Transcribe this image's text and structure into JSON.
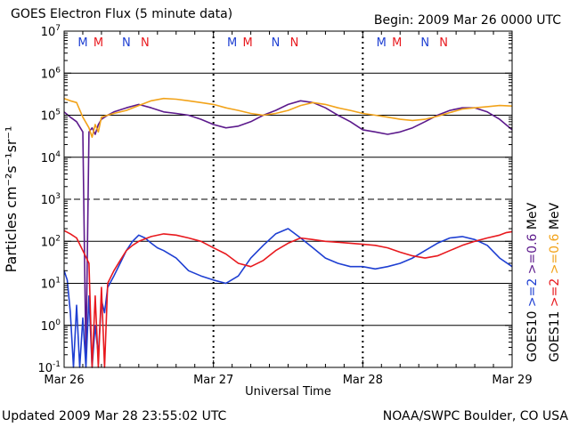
{
  "header": {
    "title": "GOES Electron Flux (5 minute data)",
    "begin": "Begin: 2009 Mar 26 0000 UTC"
  },
  "footer": {
    "updated": "Updated 2009 Mar 28 23:55:02 UTC",
    "credit": "NOAA/SWPC Boulder, CO USA"
  },
  "chart_data": {
    "type": "line",
    "title": "GOES Electron Flux (5 minute data)",
    "xlabel": "Universal Time",
    "ylabel": "Particles cm⁻²s⁻¹sr⁻¹",
    "yscale": "log",
    "ylim": [
      0.1,
      10000000
    ],
    "xlim": [
      0,
      72
    ],
    "x_unit": "hours since 2009 Mar 26 0000 UTC",
    "x_ticks": [
      {
        "x": 0,
        "label": "Mar 26"
      },
      {
        "x": 24,
        "label": "Mar 27"
      },
      {
        "x": 48,
        "label": "Mar 28"
      },
      {
        "x": 72,
        "label": "Mar 29"
      }
    ],
    "y_ticks": [
      {
        "exp": -1,
        "label": "10",
        "sup": "-1"
      },
      {
        "exp": 0,
        "label": "10",
        "sup": "0"
      },
      {
        "exp": 1,
        "label": "10",
        "sup": "1"
      },
      {
        "exp": 2,
        "label": "10",
        "sup": "2"
      },
      {
        "exp": 3,
        "label": "10",
        "sup": "3"
      },
      {
        "exp": 4,
        "label": "10",
        "sup": "4"
      },
      {
        "exp": 5,
        "label": "10",
        "sup": "5"
      },
      {
        "exp": 6,
        "label": "10",
        "sup": "6"
      },
      {
        "exp": 7,
        "label": "10",
        "sup": "7"
      }
    ],
    "solid_gridlines_exp": [
      0,
      1,
      2,
      4,
      5,
      6
    ],
    "dashed_gridlines_exp": [
      3
    ],
    "day_dividers_x": [
      24,
      48
    ],
    "mn_markers": [
      {
        "x": 3,
        "label": "M",
        "color": "#1e3fd2"
      },
      {
        "x": 5.5,
        "label": "M",
        "color": "#e8191e"
      },
      {
        "x": 10,
        "label": "N",
        "color": "#1e3fd2"
      },
      {
        "x": 13,
        "label": "N",
        "color": "#e8191e"
      },
      {
        "x": 27,
        "label": "M",
        "color": "#1e3fd2"
      },
      {
        "x": 29.5,
        "label": "M",
        "color": "#e8191e"
      },
      {
        "x": 34,
        "label": "N",
        "color": "#1e3fd2"
      },
      {
        "x": 37,
        "label": "N",
        "color": "#e8191e"
      },
      {
        "x": 51,
        "label": "M",
        "color": "#1e3fd2"
      },
      {
        "x": 53.5,
        "label": "M",
        "color": "#e8191e"
      },
      {
        "x": 58,
        "label": "N",
        "color": "#1e3fd2"
      },
      {
        "x": 61,
        "label": "N",
        "color": "#e8191e"
      }
    ],
    "legend": [
      {
        "text": "GOES10",
        "color": "#000000"
      },
      {
        "text": ">=2",
        "color": "#1e3fd2"
      },
      {
        "text": ">=0.6",
        "color": "#5c1a8c"
      },
      {
        "text": "MeV",
        "color": "#000000"
      },
      {
        "text": "GOES11",
        "color": "#000000"
      },
      {
        "text": ">=2",
        "color": "#e8191e"
      },
      {
        "text": ">=0.6",
        "color": "#f2a31a"
      },
      {
        "text": "MeV",
        "color": "#000000"
      }
    ],
    "series": [
      {
        "name": "GOES10 >=0.6 MeV",
        "color": "#5c1a8c",
        "x": [
          0,
          1,
          2,
          3,
          3.5,
          4,
          4.5,
          5,
          5.5,
          6,
          7,
          8,
          10,
          12,
          14,
          16,
          18,
          20,
          22,
          24,
          26,
          28,
          30,
          32,
          34,
          36,
          38,
          40,
          42,
          44,
          46,
          48,
          50,
          52,
          54,
          56,
          58,
          60,
          62,
          64,
          66,
          68,
          70,
          72
        ],
        "y": [
          120000,
          90000,
          70000,
          40000,
          0.15,
          40000,
          50000,
          35000,
          60000,
          80000,
          100000,
          120000,
          150000,
          180000,
          150000,
          120000,
          110000,
          100000,
          80000,
          60000,
          50000,
          55000,
          70000,
          100000,
          130000,
          180000,
          220000,
          200000,
          150000,
          100000,
          70000,
          45000,
          40000,
          35000,
          40000,
          50000,
          70000,
          100000,
          130000,
          150000,
          150000,
          120000,
          80000,
          45000
        ]
      },
      {
        "name": "GOES11 >=0.6 MeV",
        "color": "#f2a31a",
        "x": [
          0,
          1,
          2,
          3,
          4,
          4.5,
          5,
          5.5,
          6,
          7,
          8,
          10,
          12,
          14,
          16,
          18,
          20,
          22,
          24,
          26,
          28,
          30,
          32,
          34,
          36,
          38,
          40,
          42,
          44,
          46,
          48,
          50,
          52,
          54,
          56,
          58,
          60,
          62,
          64,
          66,
          68,
          70,
          72
        ],
        "y": [
          250000,
          220000,
          200000,
          90000,
          50000,
          30000,
          60000,
          40000,
          90000,
          100000,
          110000,
          130000,
          170000,
          220000,
          250000,
          240000,
          220000,
          200000,
          180000,
          150000,
          130000,
          110000,
          100000,
          110000,
          130000,
          170000,
          200000,
          180000,
          150000,
          130000,
          110000,
          100000,
          90000,
          80000,
          75000,
          80000,
          95000,
          115000,
          140000,
          150000,
          160000,
          170000,
          165000
        ]
      },
      {
        "name": "GOES10 >=2 MeV",
        "color": "#1e3fd2",
        "x": [
          0,
          0.5,
          1,
          1.5,
          2,
          2.5,
          3,
          3.5,
          4,
          4.5,
          5,
          5.5,
          6,
          6.5,
          7,
          8,
          9,
          10,
          11,
          12,
          13,
          14,
          15,
          16,
          18,
          20,
          22,
          24,
          26,
          28,
          30,
          32,
          34,
          36,
          38,
          40,
          42,
          44,
          46,
          48,
          50,
          52,
          54,
          56,
          58,
          60,
          62,
          64,
          66,
          68,
          70,
          72
        ],
        "y": [
          20,
          12,
          2,
          0.1,
          3,
          0.1,
          1.5,
          0.1,
          5,
          0.1,
          1,
          0.2,
          4,
          2,
          8,
          15,
          30,
          60,
          100,
          140,
          120,
          90,
          70,
          60,
          40,
          20,
          15,
          12,
          10,
          15,
          40,
          80,
          150,
          200,
          120,
          70,
          40,
          30,
          25,
          25,
          22,
          25,
          30,
          40,
          60,
          90,
          120,
          130,
          110,
          80,
          40,
          25
        ]
      },
      {
        "name": "GOES11 >=2 MeV",
        "color": "#e8191e",
        "x": [
          0,
          1,
          2,
          3,
          4,
          4.5,
          5,
          5.5,
          6,
          6.5,
          7,
          8,
          9,
          10,
          11,
          12,
          14,
          16,
          18,
          20,
          22,
          24,
          26,
          28,
          30,
          32,
          34,
          36,
          38,
          40,
          42,
          44,
          46,
          48,
          50,
          52,
          54,
          56,
          58,
          60,
          62,
          64,
          66,
          68,
          70,
          71,
          72
        ],
        "y": [
          180,
          150,
          120,
          60,
          30,
          0.1,
          5,
          0.1,
          8,
          0.1,
          10,
          20,
          35,
          60,
          80,
          100,
          130,
          150,
          140,
          120,
          100,
          70,
          50,
          30,
          25,
          35,
          60,
          90,
          120,
          110,
          100,
          95,
          90,
          85,
          80,
          70,
          55,
          45,
          40,
          45,
          60,
          80,
          100,
          120,
          140,
          160,
          170
        ]
      }
    ]
  }
}
